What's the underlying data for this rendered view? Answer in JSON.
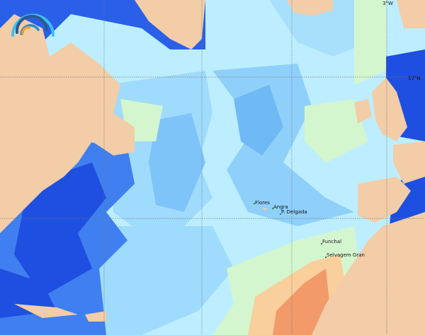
{
  "map": {
    "grid_labels": {
      "lon_3w": "3°W",
      "lat_57n": "57°N"
    },
    "places": [
      {
        "name": "Flores"
      },
      {
        "name": "Angra"
      },
      {
        "name": "P. Delgada"
      },
      {
        "name": "Funchal"
      },
      {
        "name": "Selvagem Gran"
      }
    ],
    "colors": {
      "land": "#f2cda8",
      "deep_blue": "#1e4fe0",
      "mid_blue": "#3f7fef",
      "light_blue": "#8fd0fb",
      "pale_cyan": "#c4f3ff",
      "pale_green": "#d4f6cf",
      "light_orange": "#f9cf9c",
      "orange": "#f39a6b"
    },
    "logo_icon": "concentric-arcs-logo"
  }
}
